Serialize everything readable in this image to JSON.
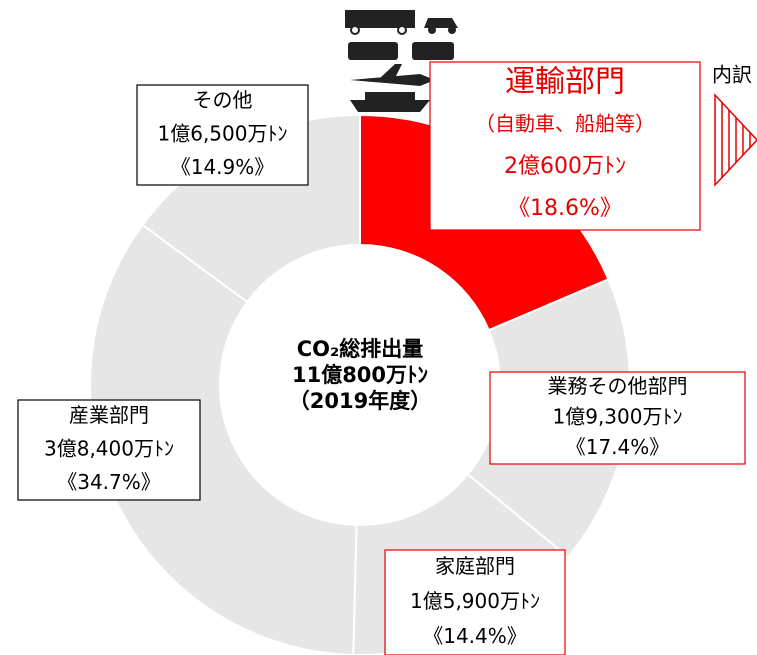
{
  "chart_data": {
    "type": "donut",
    "center_text": [
      "CO₂総排出量",
      "11億800万ﾄﾝ",
      "（2019年度）"
    ],
    "categories": [
      "運輸部門",
      "業務その他部門",
      "家庭部門",
      "産業部門",
      "その他"
    ],
    "transport_note": "（自動車、船舶等）",
    "amounts": [
      "2億600万ﾄﾝ",
      "1億9,300万ﾄﾝ",
      "1億5,900万ﾄﾝ",
      "3億8,400万ﾄﾝ",
      "1億6,500万ﾄﾝ"
    ],
    "values": [
      18.6,
      17.4,
      14.4,
      34.7,
      14.9
    ],
    "value_labels": [
      "《18.6%》",
      "《17.4%》",
      "《14.4%》",
      "《34.7%》",
      "《14.9%》"
    ],
    "colors": [
      "#ff0000",
      "#e6e6e6",
      "#e6e6e6",
      "#e6e6e6",
      "#e6e6e6"
    ],
    "breakdown_label": "内訳"
  }
}
